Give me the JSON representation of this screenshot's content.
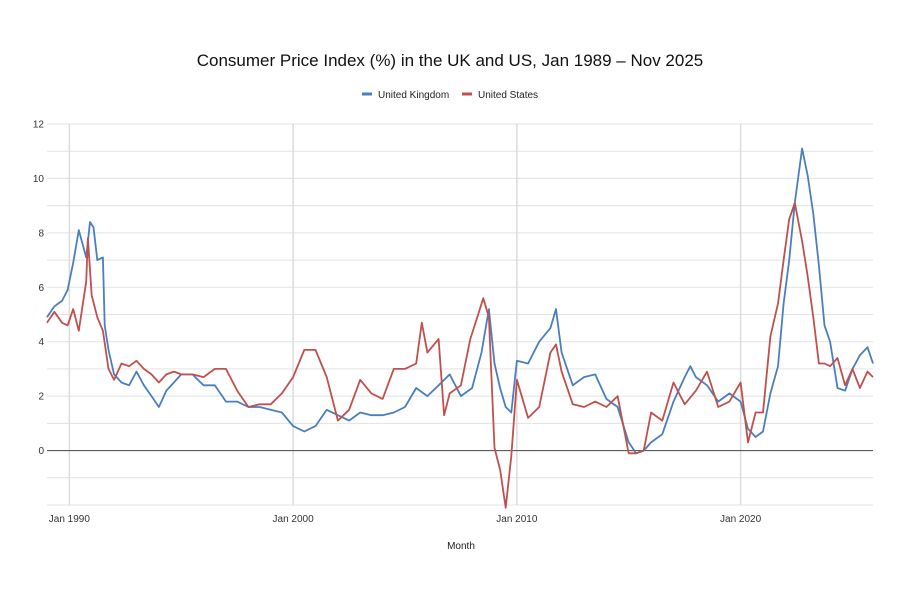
{
  "chart_data": {
    "type": "line",
    "title": "Consumer Price Index (%) in the UK and US, Jan 1989 – Nov 2025",
    "xlabel": "Month",
    "ylabel": "",
    "xlim": [
      1989.0,
      2025.917
    ],
    "ylim": [
      -2,
      12
    ],
    "y_ticks": [
      0,
      2,
      4,
      6,
      8,
      10,
      12
    ],
    "x_ticks": [
      {
        "label": "Jan 1990",
        "value": 1990.0
      },
      {
        "label": "Jan 2000",
        "value": 2000.0
      },
      {
        "label": "Jan 2010",
        "value": 2010.0
      },
      {
        "label": "Jan 2020",
        "value": 2020.0
      }
    ],
    "legend": "top-center",
    "series": [
      {
        "name": "United Kingdom",
        "color": "#4a7fbf",
        "points": [
          [
            1989.0,
            4.9
          ],
          [
            1989.33,
            5.3
          ],
          [
            1989.67,
            5.5
          ],
          [
            1989.92,
            5.9
          ],
          [
            1990.17,
            6.9
          ],
          [
            1990.42,
            8.1
          ],
          [
            1990.75,
            7.1
          ],
          [
            1990.92,
            8.4
          ],
          [
            1991.08,
            8.2
          ],
          [
            1991.25,
            7.0
          ],
          [
            1991.5,
            7.1
          ],
          [
            1991.58,
            4.6
          ],
          [
            1991.75,
            3.7
          ],
          [
            1992.0,
            2.8
          ],
          [
            1992.33,
            2.5
          ],
          [
            1992.67,
            2.4
          ],
          [
            1993.0,
            2.9
          ],
          [
            1993.33,
            2.4
          ],
          [
            1993.67,
            2.0
          ],
          [
            1994.0,
            1.6
          ],
          [
            1994.33,
            2.2
          ],
          [
            1994.67,
            2.5
          ],
          [
            1995.0,
            2.8
          ],
          [
            1995.5,
            2.8
          ],
          [
            1996.0,
            2.4
          ],
          [
            1996.5,
            2.4
          ],
          [
            1997.0,
            1.8
          ],
          [
            1997.5,
            1.8
          ],
          [
            1998.0,
            1.6
          ],
          [
            1998.5,
            1.6
          ],
          [
            1999.0,
            1.5
          ],
          [
            1999.5,
            1.4
          ],
          [
            2000.0,
            0.9
          ],
          [
            2000.5,
            0.7
          ],
          [
            2001.0,
            0.9
          ],
          [
            2001.5,
            1.5
          ],
          [
            2002.0,
            1.3
          ],
          [
            2002.5,
            1.1
          ],
          [
            2003.0,
            1.4
          ],
          [
            2003.5,
            1.3
          ],
          [
            2004.0,
            1.3
          ],
          [
            2004.5,
            1.4
          ],
          [
            2005.0,
            1.6
          ],
          [
            2005.5,
            2.3
          ],
          [
            2006.0,
            2.0
          ],
          [
            2006.5,
            2.4
          ],
          [
            2007.0,
            2.8
          ],
          [
            2007.5,
            2.0
          ],
          [
            2008.0,
            2.3
          ],
          [
            2008.42,
            3.6
          ],
          [
            2008.75,
            5.2
          ],
          [
            2009.0,
            3.2
          ],
          [
            2009.25,
            2.3
          ],
          [
            2009.5,
            1.6
          ],
          [
            2009.75,
            1.4
          ],
          [
            2010.0,
            3.3
          ],
          [
            2010.5,
            3.2
          ],
          [
            2011.0,
            4.0
          ],
          [
            2011.5,
            4.5
          ],
          [
            2011.75,
            5.2
          ],
          [
            2012.0,
            3.6
          ],
          [
            2012.5,
            2.4
          ],
          [
            2013.0,
            2.7
          ],
          [
            2013.5,
            2.8
          ],
          [
            2014.0,
            1.9
          ],
          [
            2014.5,
            1.6
          ],
          [
            2015.0,
            0.3
          ],
          [
            2015.33,
            -0.1
          ],
          [
            2015.67,
            0.0
          ],
          [
            2016.0,
            0.3
          ],
          [
            2016.5,
            0.6
          ],
          [
            2017.0,
            1.8
          ],
          [
            2017.5,
            2.7
          ],
          [
            2017.75,
            3.1
          ],
          [
            2018.0,
            2.7
          ],
          [
            2018.5,
            2.4
          ],
          [
            2019.0,
            1.8
          ],
          [
            2019.5,
            2.1
          ],
          [
            2020.0,
            1.8
          ],
          [
            2020.33,
            0.8
          ],
          [
            2020.67,
            0.5
          ],
          [
            2021.0,
            0.7
          ],
          [
            2021.33,
            2.1
          ],
          [
            2021.67,
            3.1
          ],
          [
            2021.92,
            5.4
          ],
          [
            2022.17,
            7.0
          ],
          [
            2022.42,
            9.1
          ],
          [
            2022.75,
            11.1
          ],
          [
            2023.0,
            10.1
          ],
          [
            2023.25,
            8.7
          ],
          [
            2023.5,
            6.8
          ],
          [
            2023.75,
            4.6
          ],
          [
            2024.0,
            4.0
          ],
          [
            2024.33,
            2.3
          ],
          [
            2024.67,
            2.2
          ],
          [
            2025.0,
            3.0
          ],
          [
            2025.33,
            3.5
          ],
          [
            2025.67,
            3.8
          ],
          [
            2025.917,
            3.2
          ]
        ]
      },
      {
        "name": "United States",
        "color": "#c0504d",
        "points": [
          [
            1989.0,
            4.7
          ],
          [
            1989.33,
            5.1
          ],
          [
            1989.67,
            4.7
          ],
          [
            1989.92,
            4.6
          ],
          [
            1990.17,
            5.2
          ],
          [
            1990.42,
            4.4
          ],
          [
            1990.75,
            6.2
          ],
          [
            1990.83,
            7.8
          ],
          [
            1991.0,
            5.7
          ],
          [
            1991.25,
            4.9
          ],
          [
            1991.5,
            4.4
          ],
          [
            1991.75,
            3.0
          ],
          [
            1992.0,
            2.6
          ],
          [
            1992.33,
            3.2
          ],
          [
            1992.67,
            3.1
          ],
          [
            1993.0,
            3.3
          ],
          [
            1993.33,
            3.0
          ],
          [
            1993.67,
            2.8
          ],
          [
            1994.0,
            2.5
          ],
          [
            1994.33,
            2.8
          ],
          [
            1994.67,
            2.9
          ],
          [
            1995.0,
            2.8
          ],
          [
            1995.5,
            2.8
          ],
          [
            1996.0,
            2.7
          ],
          [
            1996.5,
            3.0
          ],
          [
            1997.0,
            3.0
          ],
          [
            1997.5,
            2.2
          ],
          [
            1998.0,
            1.6
          ],
          [
            1998.5,
            1.7
          ],
          [
            1999.0,
            1.7
          ],
          [
            1999.5,
            2.1
          ],
          [
            2000.0,
            2.7
          ],
          [
            2000.5,
            3.7
          ],
          [
            2001.0,
            3.7
          ],
          [
            2001.5,
            2.7
          ],
          [
            2002.0,
            1.1
          ],
          [
            2002.5,
            1.5
          ],
          [
            2003.0,
            2.6
          ],
          [
            2003.5,
            2.1
          ],
          [
            2004.0,
            1.9
          ],
          [
            2004.5,
            3.0
          ],
          [
            2005.0,
            3.0
          ],
          [
            2005.5,
            3.2
          ],
          [
            2005.75,
            4.7
          ],
          [
            2006.0,
            3.6
          ],
          [
            2006.5,
            4.1
          ],
          [
            2006.75,
            1.3
          ],
          [
            2007.0,
            2.1
          ],
          [
            2007.5,
            2.4
          ],
          [
            2007.92,
            4.1
          ],
          [
            2008.0,
            4.3
          ],
          [
            2008.5,
            5.6
          ],
          [
            2008.75,
            4.9
          ],
          [
            2009.0,
            0.1
          ],
          [
            2009.25,
            -0.7
          ],
          [
            2009.5,
            -2.1
          ],
          [
            2009.75,
            -0.2
          ],
          [
            2010.0,
            2.6
          ],
          [
            2010.5,
            1.2
          ],
          [
            2011.0,
            1.6
          ],
          [
            2011.5,
            3.6
          ],
          [
            2011.75,
            3.9
          ],
          [
            2012.0,
            2.9
          ],
          [
            2012.5,
            1.7
          ],
          [
            2013.0,
            1.6
          ],
          [
            2013.5,
            1.8
          ],
          [
            2014.0,
            1.6
          ],
          [
            2014.5,
            2.0
          ],
          [
            2015.0,
            -0.1
          ],
          [
            2015.33,
            -0.1
          ],
          [
            2015.67,
            0.0
          ],
          [
            2016.0,
            1.4
          ],
          [
            2016.5,
            1.1
          ],
          [
            2017.0,
            2.5
          ],
          [
            2017.5,
            1.7
          ],
          [
            2018.0,
            2.2
          ],
          [
            2018.5,
            2.9
          ],
          [
            2019.0,
            1.6
          ],
          [
            2019.5,
            1.8
          ],
          [
            2020.0,
            2.5
          ],
          [
            2020.33,
            0.3
          ],
          [
            2020.67,
            1.4
          ],
          [
            2021.0,
            1.4
          ],
          [
            2021.33,
            4.2
          ],
          [
            2021.67,
            5.4
          ],
          [
            2021.92,
            7.0
          ],
          [
            2022.17,
            8.5
          ],
          [
            2022.42,
            9.1
          ],
          [
            2022.75,
            7.7
          ],
          [
            2023.0,
            6.4
          ],
          [
            2023.25,
            4.9
          ],
          [
            2023.5,
            3.2
          ],
          [
            2023.75,
            3.2
          ],
          [
            2024.0,
            3.1
          ],
          [
            2024.33,
            3.4
          ],
          [
            2024.67,
            2.4
          ],
          [
            2025.0,
            3.0
          ],
          [
            2025.33,
            2.3
          ],
          [
            2025.67,
            2.9
          ],
          [
            2025.917,
            2.7
          ]
        ]
      }
    ]
  }
}
